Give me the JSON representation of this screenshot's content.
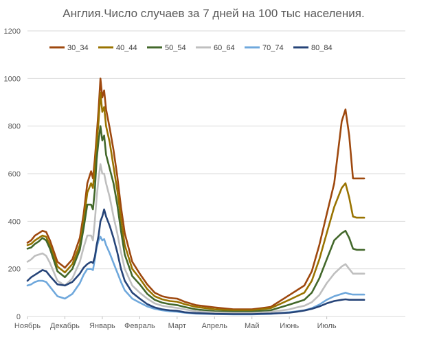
{
  "chart_data": {
    "type": "line",
    "title": "Англия.Число случаев за 7 дней на 100 тыс населения.",
    "xlabel": "",
    "ylabel": "",
    "ylim": [
      0,
      1200
    ],
    "yticks": [
      0,
      200,
      400,
      600,
      800,
      1000,
      1200
    ],
    "grid": "horizontal",
    "legend_position": "top-left",
    "x_tick_labels": [
      "Ноябрь",
      "Декабрь",
      "Январь",
      "Февраль",
      "Март",
      "Апрель",
      "Май",
      "Июнь",
      "Июль"
    ],
    "x_units": "months since November (0 = Ноябрь, 1 = Декабрь, ... 8 = Июль)",
    "x": [
      0.0,
      0.1,
      0.2,
      0.3,
      0.4,
      0.5,
      0.6,
      0.8,
      1.0,
      1.2,
      1.4,
      1.5,
      1.6,
      1.7,
      1.75,
      1.8,
      1.85,
      1.9,
      1.95,
      2.0,
      2.05,
      2.1,
      2.2,
      2.3,
      2.4,
      2.5,
      2.6,
      2.8,
      3.0,
      3.2,
      3.4,
      3.6,
      3.8,
      4.0,
      4.2,
      4.5,
      5.0,
      5.5,
      6.0,
      6.5,
      7.0,
      7.2,
      7.4,
      7.6,
      7.8,
      8.0,
      8.2,
      8.4,
      8.5,
      8.6,
      8.7,
      8.8,
      8.9,
      9.0
    ],
    "series": [
      {
        "name": "30_34",
        "color": "#9E480E",
        "values": [
          310,
          320,
          340,
          350,
          360,
          355,
          320,
          230,
          205,
          240,
          330,
          430,
          560,
          610,
          580,
          660,
          760,
          870,
          1000,
          920,
          950,
          870,
          790,
          700,
          590,
          460,
          350,
          230,
          180,
          135,
          100,
          85,
          78,
          75,
          62,
          48,
          38,
          30,
          30,
          40,
          90,
          110,
          130,
          190,
          300,
          430,
          560,
          820,
          870,
          760,
          580,
          580,
          580,
          580
        ]
      },
      {
        "name": "40_44",
        "color": "#997300",
        "values": [
          300,
          305,
          320,
          330,
          340,
          335,
          300,
          210,
          185,
          220,
          300,
          400,
          520,
          560,
          540,
          620,
          720,
          820,
          940,
          860,
          880,
          800,
          730,
          630,
          530,
          410,
          300,
          200,
          160,
          115,
          85,
          72,
          65,
          62,
          52,
          40,
          30,
          26,
          26,
          35,
          70,
          85,
          100,
          150,
          240,
          350,
          460,
          540,
          560,
          500,
          420,
          415,
          415,
          415
        ]
      },
      {
        "name": "50_54",
        "color": "#43682B",
        "values": [
          285,
          290,
          305,
          315,
          330,
          320,
          285,
          190,
          165,
          200,
          280,
          370,
          470,
          470,
          450,
          530,
          660,
          740,
          800,
          740,
          760,
          680,
          620,
          560,
          470,
          360,
          260,
          170,
          135,
          95,
          70,
          58,
          52,
          48,
          40,
          30,
          22,
          20,
          20,
          26,
          50,
          60,
          70,
          100,
          160,
          240,
          320,
          350,
          360,
          330,
          285,
          280,
          280,
          280
        ]
      },
      {
        "name": "60_64",
        "color": "#BFBFBF",
        "values": [
          230,
          240,
          255,
          260,
          265,
          255,
          225,
          150,
          130,
          160,
          230,
          290,
          340,
          340,
          320,
          400,
          500,
          580,
          640,
          600,
          600,
          560,
          500,
          420,
          350,
          270,
          200,
          130,
          100,
          75,
          55,
          45,
          40,
          36,
          30,
          22,
          17,
          15,
          15,
          19,
          30,
          38,
          45,
          60,
          90,
          140,
          180,
          210,
          220,
          200,
          180,
          180,
          180,
          180
        ]
      },
      {
        "name": "70_74",
        "color": "#6FA8DC",
        "values": [
          130,
          135,
          145,
          150,
          150,
          145,
          125,
          85,
          75,
          95,
          140,
          175,
          200,
          200,
          195,
          240,
          290,
          320,
          335,
          320,
          325,
          300,
          265,
          225,
          185,
          145,
          110,
          75,
          58,
          42,
          32,
          26,
          22,
          20,
          16,
          12,
          10,
          9,
          9,
          11,
          18,
          22,
          26,
          35,
          50,
          70,
          85,
          95,
          100,
          95,
          92,
          92,
          92,
          92
        ]
      },
      {
        "name": "80_84",
        "color": "#264478",
        "values": [
          150,
          165,
          175,
          185,
          195,
          190,
          170,
          135,
          130,
          145,
          180,
          205,
          220,
          230,
          225,
          250,
          300,
          340,
          400,
          420,
          450,
          420,
          380,
          330,
          270,
          200,
          150,
          100,
          75,
          52,
          38,
          30,
          26,
          24,
          18,
          14,
          11,
          10,
          10,
          12,
          16,
          20,
          25,
          32,
          42,
          55,
          65,
          70,
          72,
          70,
          70,
          70,
          70,
          70
        ]
      }
    ]
  }
}
